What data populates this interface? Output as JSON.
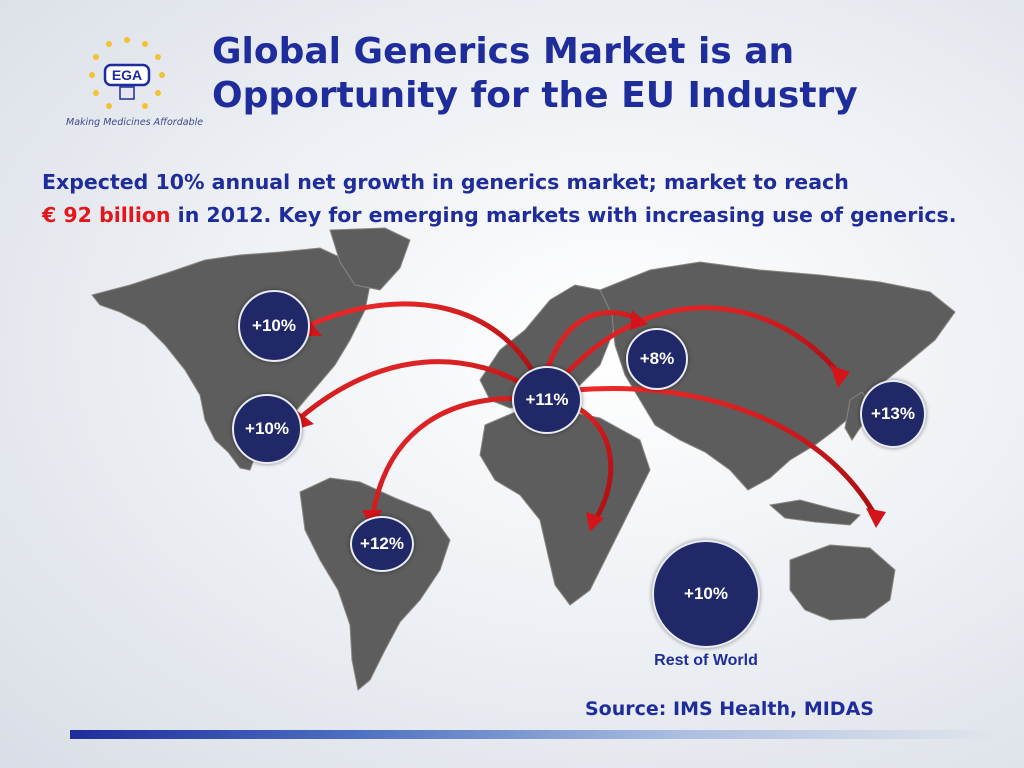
{
  "logo": {
    "text": "EGA",
    "tagline": "Making Medicines Affordable"
  },
  "title": "Global Generics Market is an Opportunity for the EU Industry",
  "subtitle": {
    "part1": "Expected 10% annual net growth in generics market; market to reach",
    "highlight": "€ 92 billion",
    "part2": "in 2012. Key for emerging markets with increasing use of generics."
  },
  "regions": {
    "europe": "+11%",
    "canada": "+10%",
    "usa": "+10%",
    "latin_america": "+12%",
    "russia": "+8%",
    "japan": "+13%",
    "rest_of_world": "+10%"
  },
  "rest_of_world_label": "Rest of World",
  "source": "Source: IMS Health, MIDAS",
  "colors": {
    "title": "#1f2c9c",
    "highlight": "#e3161b",
    "bubble": "#202868",
    "arrow": "#d4141a",
    "land": "#5d5d5d"
  }
}
